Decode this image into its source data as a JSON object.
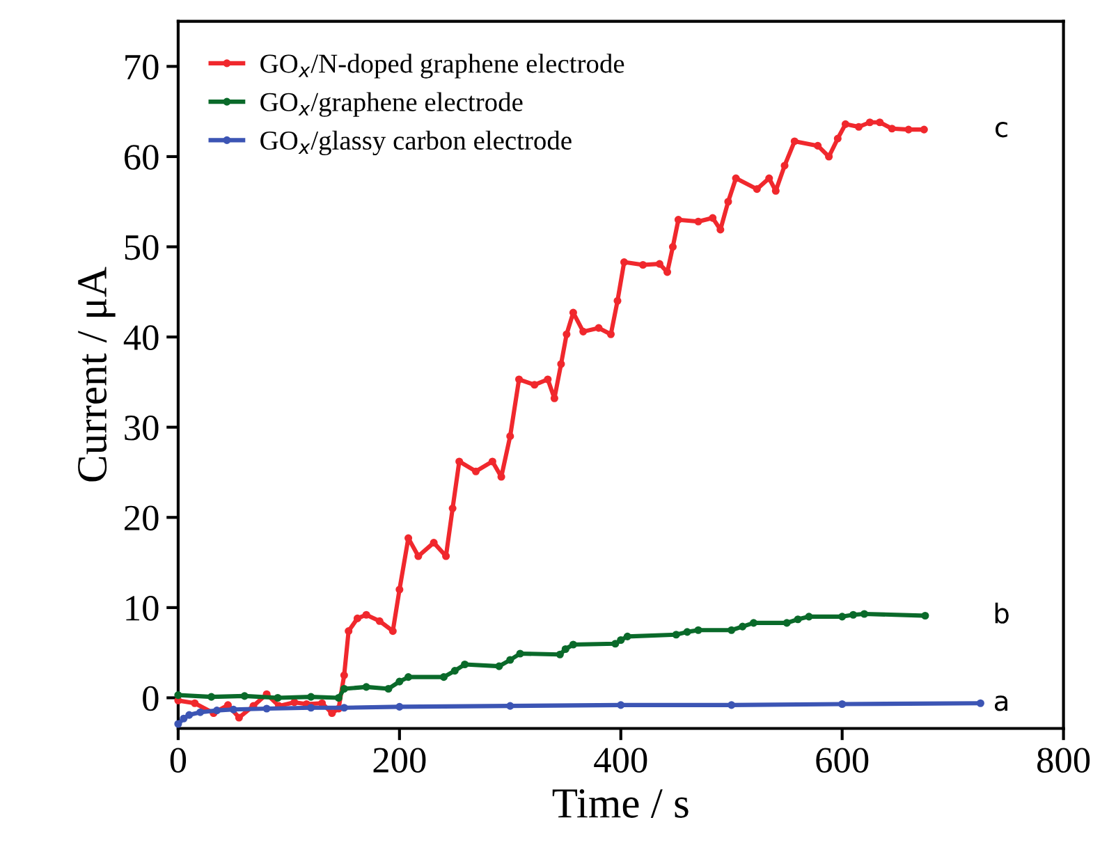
{
  "chart_data": {
    "type": "line",
    "xlabel": "Time / s",
    "ylabel": "Current / μA",
    "xlim": [
      0,
      800
    ],
    "ylim": [
      -3.4,
      75
    ],
    "xticks": [
      0,
      200,
      400,
      600,
      800
    ],
    "yticks": [
      0,
      10,
      20,
      30,
      40,
      50,
      60,
      70
    ],
    "grid": false,
    "legend": "top left",
    "marker": "circle",
    "line_style": "solid",
    "series": [
      {
        "name": "GO$_{x}$/N-doped graphene electrode",
        "color": "#f0282d",
        "x": [
          0,
          15,
          32,
          45,
          55,
          68,
          80,
          91,
          105,
          116,
          130,
          139,
          145,
          150,
          154,
          162,
          170,
          182,
          194,
          200,
          208,
          217,
          231,
          242,
          248,
          254,
          269,
          284,
          292,
          300,
          308,
          322,
          334,
          340,
          346,
          351,
          357,
          366,
          380,
          391,
          397,
          403,
          420,
          435,
          442,
          447,
          452,
          470,
          483,
          490,
          497,
          504,
          523,
          534,
          540,
          548,
          557,
          578,
          588,
          596,
          603,
          615,
          625,
          634,
          645,
          660,
          674
        ],
        "values": [
          -0.3,
          -0.6,
          -1.7,
          -0.8,
          -2.2,
          -0.9,
          0.4,
          -0.9,
          -0.5,
          -0.7,
          -0.6,
          -1.7,
          -1.2,
          2.5,
          7.4,
          8.8,
          9.2,
          8.5,
          7.4,
          12,
          17.7,
          15.7,
          17.2,
          15.7,
          21,
          26.2,
          25.1,
          26.2,
          24.5,
          29,
          35.3,
          34.7,
          35.3,
          33.2,
          37,
          40.3,
          42.7,
          40.6,
          41,
          40.3,
          44,
          48.3,
          48,
          48.1,
          47.2,
          50,
          53.0,
          52.8,
          53.2,
          51.9,
          55,
          57.6,
          56.4,
          57.6,
          56.2,
          59,
          61.7,
          61.2,
          60.0,
          62,
          63.6,
          63.3,
          63.8,
          63.8,
          63.1,
          63.0,
          63.0
        ]
      },
      {
        "name": "GO$_{x}$/graphene electrode",
        "color": "#0a6a2a",
        "x": [
          0,
          30,
          60,
          90,
          120,
          145,
          150,
          170,
          190,
          200,
          208,
          240,
          250,
          259,
          290,
          300,
          309,
          345,
          350,
          357,
          395,
          400,
          406,
          450,
          460,
          470,
          500,
          510,
          520,
          550,
          560,
          570,
          600,
          610,
          620,
          675
        ],
        "values": [
          0.3,
          0.1,
          0.2,
          0.0,
          0.1,
          0.0,
          1.0,
          1.2,
          1.0,
          1.8,
          2.3,
          2.3,
          3.0,
          3.7,
          3.5,
          4.2,
          4.9,
          4.8,
          5.4,
          5.9,
          6.0,
          6.4,
          6.8,
          7.0,
          7.3,
          7.5,
          7.5,
          7.9,
          8.3,
          8.3,
          8.7,
          9.0,
          9.0,
          9.2,
          9.3,
          9.1
        ]
      },
      {
        "name": "GO$_{x}$/glassy carbon electrode",
        "color": "#3c55b4",
        "x": [
          0,
          5,
          10,
          20,
          35,
          50,
          80,
          120,
          150,
          200,
          300,
          400,
          500,
          600,
          725
        ],
        "values": [
          -2.9,
          -2.3,
          -1.9,
          -1.6,
          -1.4,
          -1.3,
          -1.2,
          -1.1,
          -1.1,
          -1.0,
          -0.9,
          -0.8,
          -0.8,
          -0.7,
          -0.6
        ]
      }
    ],
    "annotations": [
      "c",
      "b",
      "a"
    ]
  }
}
